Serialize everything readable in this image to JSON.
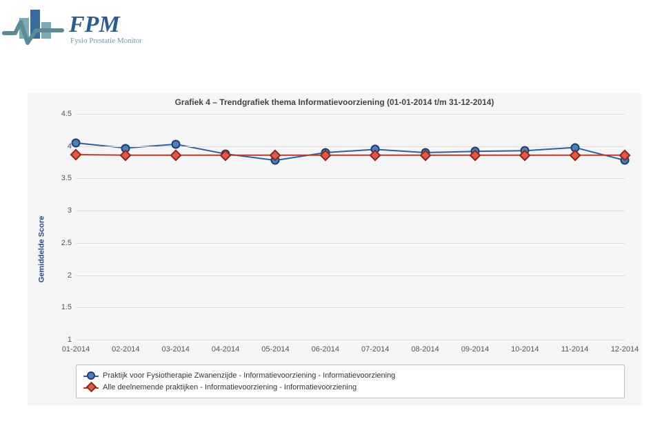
{
  "header": {
    "brand_main": "FPM",
    "brand_sub": "Fysio Prestatie Monitor",
    "brand_color_text": "#2b5c8c",
    "brand_color_sub": "#6e9aa9",
    "bar_color_1": "#7baab2",
    "bar_color_2": "#3a6a99",
    "wave_color": "#5e8a96"
  },
  "chart": {
    "type": "line",
    "title": "Grafiek 4 – Trendgrafiek thema Informatievoorziening (01-01-2014 t/m 31-12-2014)",
    "title_fontsize": 12,
    "y_label": "Gemiddelde Score",
    "background": "#f5f5f5",
    "grid_color": "#dddddd",
    "ylim": [
      1,
      4.5
    ],
    "yticks": [
      1,
      1.5,
      2,
      2.5,
      3,
      3.5,
      4,
      4.5
    ],
    "x_categories": [
      "01-2014",
      "02-2014",
      "03-2014",
      "04-2014",
      "05-2014",
      "06-2014",
      "07-2014",
      "08-2014",
      "09-2014",
      "10-2014",
      "11-2014",
      "12-2014"
    ],
    "series": [
      {
        "label": "Praktijk voor Fysiotherapie Zwanenzijde - Informatievoorziening - Informatievoorziening",
        "color_line": "#2f5f9e",
        "color_marker_fill": "#4a7fb8",
        "color_marker_border": "#1c3f70",
        "marker": "circle",
        "line_width": 2,
        "values": [
          4.05,
          3.97,
          4.03,
          3.88,
          3.78,
          3.9,
          3.95,
          3.9,
          3.92,
          3.93,
          3.98,
          3.78
        ]
      },
      {
        "label": "Alle deelnemende praktijken - Informatievoorziening - Informatievoorziening",
        "color_line": "#c0392b",
        "color_marker_fill": "#e05a4a",
        "color_marker_border": "#8a2a20",
        "marker": "diamond",
        "line_width": 2,
        "values": [
          3.87,
          3.86,
          3.86,
          3.86,
          3.86,
          3.86,
          3.86,
          3.86,
          3.86,
          3.86,
          3.86,
          3.86
        ]
      }
    ],
    "legend_border": "#bbbbbb",
    "axis_fontsize": 11,
    "axis_color": "#555555"
  }
}
